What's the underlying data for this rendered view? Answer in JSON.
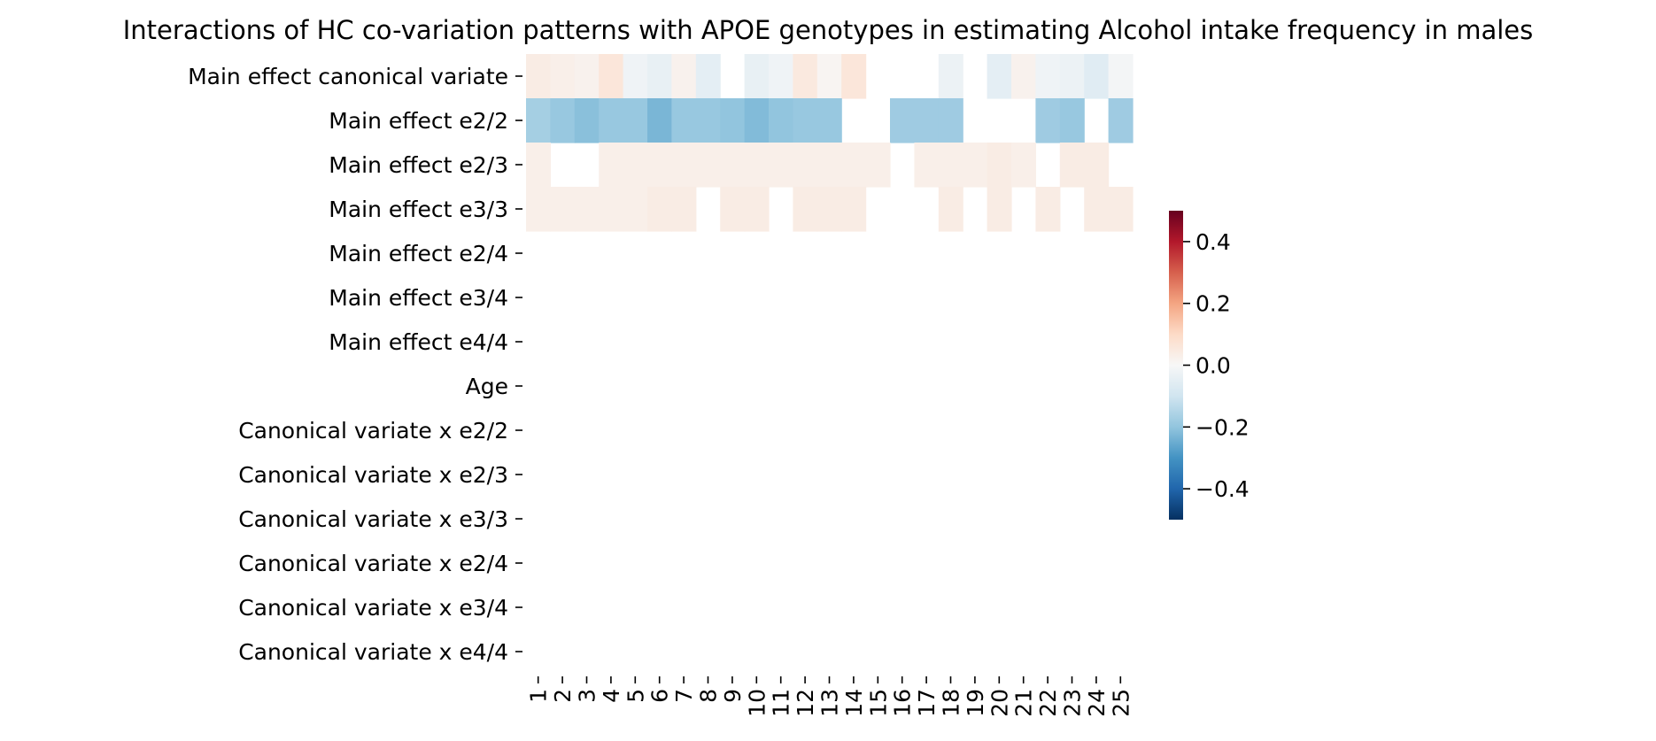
{
  "chart_data": {
    "type": "heatmap",
    "title": "Interactions of HC co-variation patterns with APOE genotypes in estimating Alcohol intake frequency in males",
    "rows": [
      "Main effect canonical variate",
      "Main effect e2/2",
      "Main effect e2/3",
      "Main effect e3/3",
      "Main effect e2/4",
      "Main effect e3/4",
      "Main effect e4/4",
      "Age",
      "Canonical variate x e2/2",
      "Canonical variate x e2/3",
      "Canonical variate x e3/3",
      "Canonical variate x e2/4",
      "Canonical variate x e3/4",
      "Canonical variate x e4/4"
    ],
    "columns": [
      "1",
      "2",
      "3",
      "4",
      "5",
      "6",
      "7",
      "8",
      "9",
      "10",
      "11",
      "12",
      "13",
      "14",
      "15",
      "16",
      "17",
      "18",
      "19",
      "20",
      "21",
      "22",
      "23",
      "24",
      "25"
    ],
    "values": [
      [
        0.04,
        0.03,
        0.02,
        0.06,
        -0.02,
        -0.04,
        0.02,
        -0.05,
        null,
        -0.04,
        -0.02,
        0.05,
        0.01,
        0.06,
        null,
        null,
        null,
        -0.03,
        null,
        -0.05,
        0.02,
        -0.02,
        -0.03,
        -0.06,
        -0.01
      ],
      [
        -0.17,
        -0.19,
        -0.21,
        -0.19,
        -0.19,
        -0.23,
        -0.19,
        -0.19,
        -0.2,
        -0.22,
        -0.2,
        -0.19,
        -0.19,
        null,
        null,
        -0.18,
        -0.18,
        -0.18,
        null,
        null,
        null,
        -0.18,
        -0.19,
        null,
        -0.18
      ],
      [
        0.03,
        null,
        null,
        0.03,
        0.03,
        0.03,
        0.03,
        0.03,
        0.03,
        0.03,
        0.03,
        0.03,
        0.03,
        0.03,
        0.03,
        null,
        0.03,
        0.03,
        0.03,
        0.04,
        0.03,
        null,
        0.04,
        0.04,
        null
      ],
      [
        0.03,
        0.03,
        0.03,
        0.03,
        0.03,
        0.04,
        0.04,
        null,
        0.04,
        0.04,
        null,
        0.04,
        0.04,
        0.04,
        null,
        null,
        null,
        0.04,
        null,
        0.04,
        null,
        0.04,
        null,
        0.04,
        0.04
      ],
      [
        null,
        null,
        null,
        null,
        null,
        null,
        null,
        null,
        null,
        null,
        null,
        null,
        null,
        null,
        null,
        null,
        null,
        null,
        null,
        null,
        null,
        null,
        null,
        null,
        null
      ],
      [
        null,
        null,
        null,
        null,
        null,
        null,
        null,
        null,
        null,
        null,
        null,
        null,
        null,
        null,
        null,
        null,
        null,
        null,
        null,
        null,
        null,
        null,
        null,
        null,
        null
      ],
      [
        null,
        null,
        null,
        null,
        null,
        null,
        null,
        null,
        null,
        null,
        null,
        null,
        null,
        null,
        null,
        null,
        null,
        null,
        null,
        null,
        null,
        null,
        null,
        null,
        null
      ],
      [
        null,
        null,
        null,
        null,
        null,
        null,
        null,
        null,
        null,
        null,
        null,
        null,
        null,
        null,
        null,
        null,
        null,
        null,
        null,
        null,
        null,
        null,
        null,
        null,
        null
      ],
      [
        null,
        null,
        null,
        null,
        null,
        null,
        null,
        null,
        null,
        null,
        null,
        null,
        null,
        null,
        null,
        null,
        null,
        null,
        null,
        null,
        null,
        null,
        null,
        null,
        null
      ],
      [
        null,
        null,
        null,
        null,
        null,
        null,
        null,
        null,
        null,
        null,
        null,
        null,
        null,
        null,
        null,
        null,
        null,
        null,
        null,
        null,
        null,
        null,
        null,
        null,
        null
      ],
      [
        null,
        null,
        null,
        null,
        null,
        null,
        null,
        null,
        null,
        null,
        null,
        null,
        null,
        null,
        null,
        null,
        null,
        null,
        null,
        null,
        null,
        null,
        null,
        null,
        null
      ],
      [
        null,
        null,
        null,
        null,
        null,
        null,
        null,
        null,
        null,
        null,
        null,
        null,
        null,
        null,
        null,
        null,
        null,
        null,
        null,
        null,
        null,
        null,
        null,
        null,
        null
      ],
      [
        null,
        null,
        null,
        null,
        null,
        null,
        null,
        null,
        null,
        null,
        null,
        null,
        null,
        null,
        null,
        null,
        null,
        null,
        null,
        null,
        null,
        null,
        null,
        null,
        null
      ],
      [
        null,
        null,
        null,
        null,
        null,
        null,
        null,
        null,
        null,
        null,
        null,
        null,
        null,
        null,
        null,
        null,
        null,
        null,
        null,
        null,
        null,
        null,
        null,
        null,
        null
      ]
    ],
    "colorbar": {
      "colormap": "RdBu_r",
      "vmin": -0.5,
      "vmax": 0.5,
      "ticks": [
        0.4,
        0.2,
        0.0,
        -0.2,
        -0.4
      ],
      "tick_labels": [
        "0.4",
        "0.2",
        "0.0",
        "−0.2",
        "−0.4"
      ]
    },
    "grid": false
  }
}
